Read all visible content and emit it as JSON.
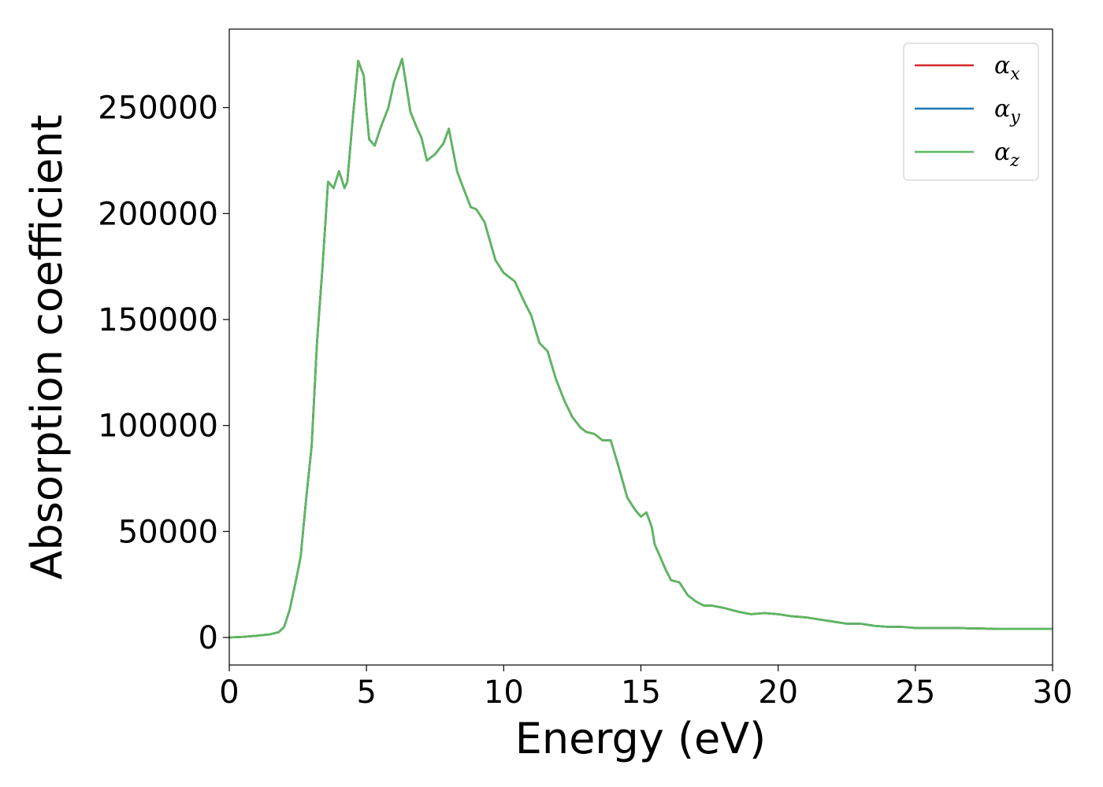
{
  "chart_data": {
    "type": "line",
    "title": "",
    "xlabel": "Energy (eV)",
    "ylabel": "Absorption coefficient",
    "xlim": [
      0,
      30
    ],
    "ylim": [
      -13000,
      287000
    ],
    "xticks": [
      0,
      5,
      10,
      15,
      20,
      25,
      30
    ],
    "xtick_labels": [
      "0",
      "5",
      "10",
      "15",
      "20",
      "25",
      "30"
    ],
    "yticks": [
      0,
      50000,
      100000,
      150000,
      200000,
      250000
    ],
    "ytick_labels": [
      "0",
      "50000",
      "100000",
      "150000",
      "200000",
      "250000"
    ],
    "grid": false,
    "legend": {
      "placement": "top-right",
      "entries": [
        {
          "base": "α",
          "sub": "x",
          "color": "#d62728"
        },
        {
          "base": "α",
          "sub": "y",
          "color": "#1f77b4"
        },
        {
          "base": "α",
          "sub": "z",
          "color": "#5cb85c"
        }
      ]
    },
    "series": [
      {
        "legend_index": 0,
        "color": "#d62728"
      },
      {
        "legend_index": 1,
        "color": "#1f77b4"
      },
      {
        "legend_index": 2,
        "color": "#5cb85c"
      }
    ],
    "x": [
      0,
      0.5,
      1.0,
      1.5,
      1.8,
      2.0,
      2.2,
      2.4,
      2.6,
      2.8,
      3.0,
      3.2,
      3.4,
      3.6,
      3.8,
      4.0,
      4.2,
      4.3,
      4.5,
      4.7,
      4.9,
      5.0,
      5.1,
      5.3,
      5.5,
      5.8,
      6.0,
      6.3,
      6.6,
      6.85,
      7.0,
      7.2,
      7.5,
      7.8,
      8.0,
      8.3,
      8.5,
      8.8,
      9.0,
      9.3,
      9.7,
      10.0,
      10.4,
      10.8,
      11.0,
      11.3,
      11.6,
      11.9,
      12.2,
      12.5,
      12.8,
      13.0,
      13.3,
      13.6,
      13.9,
      14.2,
      14.5,
      14.8,
      15.0,
      15.2,
      15.4,
      15.5,
      15.7,
      15.9,
      16.1,
      16.4,
      16.7,
      17.0,
      17.3,
      17.6,
      18.0,
      18.3,
      18.6,
      19.0,
      19.5,
      20.0,
      20.5,
      21.0,
      21.5,
      22.0,
      22.5,
      23.0,
      23.5,
      24.0,
      24.5,
      25.0,
      25.5,
      26.0,
      26.5,
      27.0,
      27.5,
      28.0,
      28.5,
      29.0,
      29.5,
      30.0
    ],
    "y": [
      0,
      300,
      800,
      1500,
      2500,
      5000,
      13000,
      25000,
      38000,
      65000,
      90000,
      140000,
      175000,
      215000,
      212000,
      220000,
      212000,
      215000,
      245000,
      272000,
      265000,
      248000,
      235000,
      232000,
      240000,
      250000,
      262000,
      273000,
      248000,
      240000,
      236000,
      225000,
      228000,
      233000,
      240000,
      220000,
      213000,
      203000,
      202000,
      196000,
      178000,
      172000,
      168000,
      157000,
      152000,
      139000,
      135000,
      122000,
      112000,
      104000,
      99000,
      97000,
      96000,
      93000,
      93000,
      80000,
      66000,
      60000,
      57000,
      59000,
      52000,
      44000,
      38000,
      32000,
      27000,
      26000,
      20000,
      17000,
      15000,
      15000,
      14000,
      13000,
      12000,
      11000,
      11500,
      11000,
      10000,
      9500,
      8500,
      7500,
      6500,
      6500,
      5500,
      5000,
      5000,
      4500,
      4500,
      4500,
      4500,
      4300,
      4200,
      4000,
      4000,
      4000,
      4000,
      4000
    ]
  }
}
